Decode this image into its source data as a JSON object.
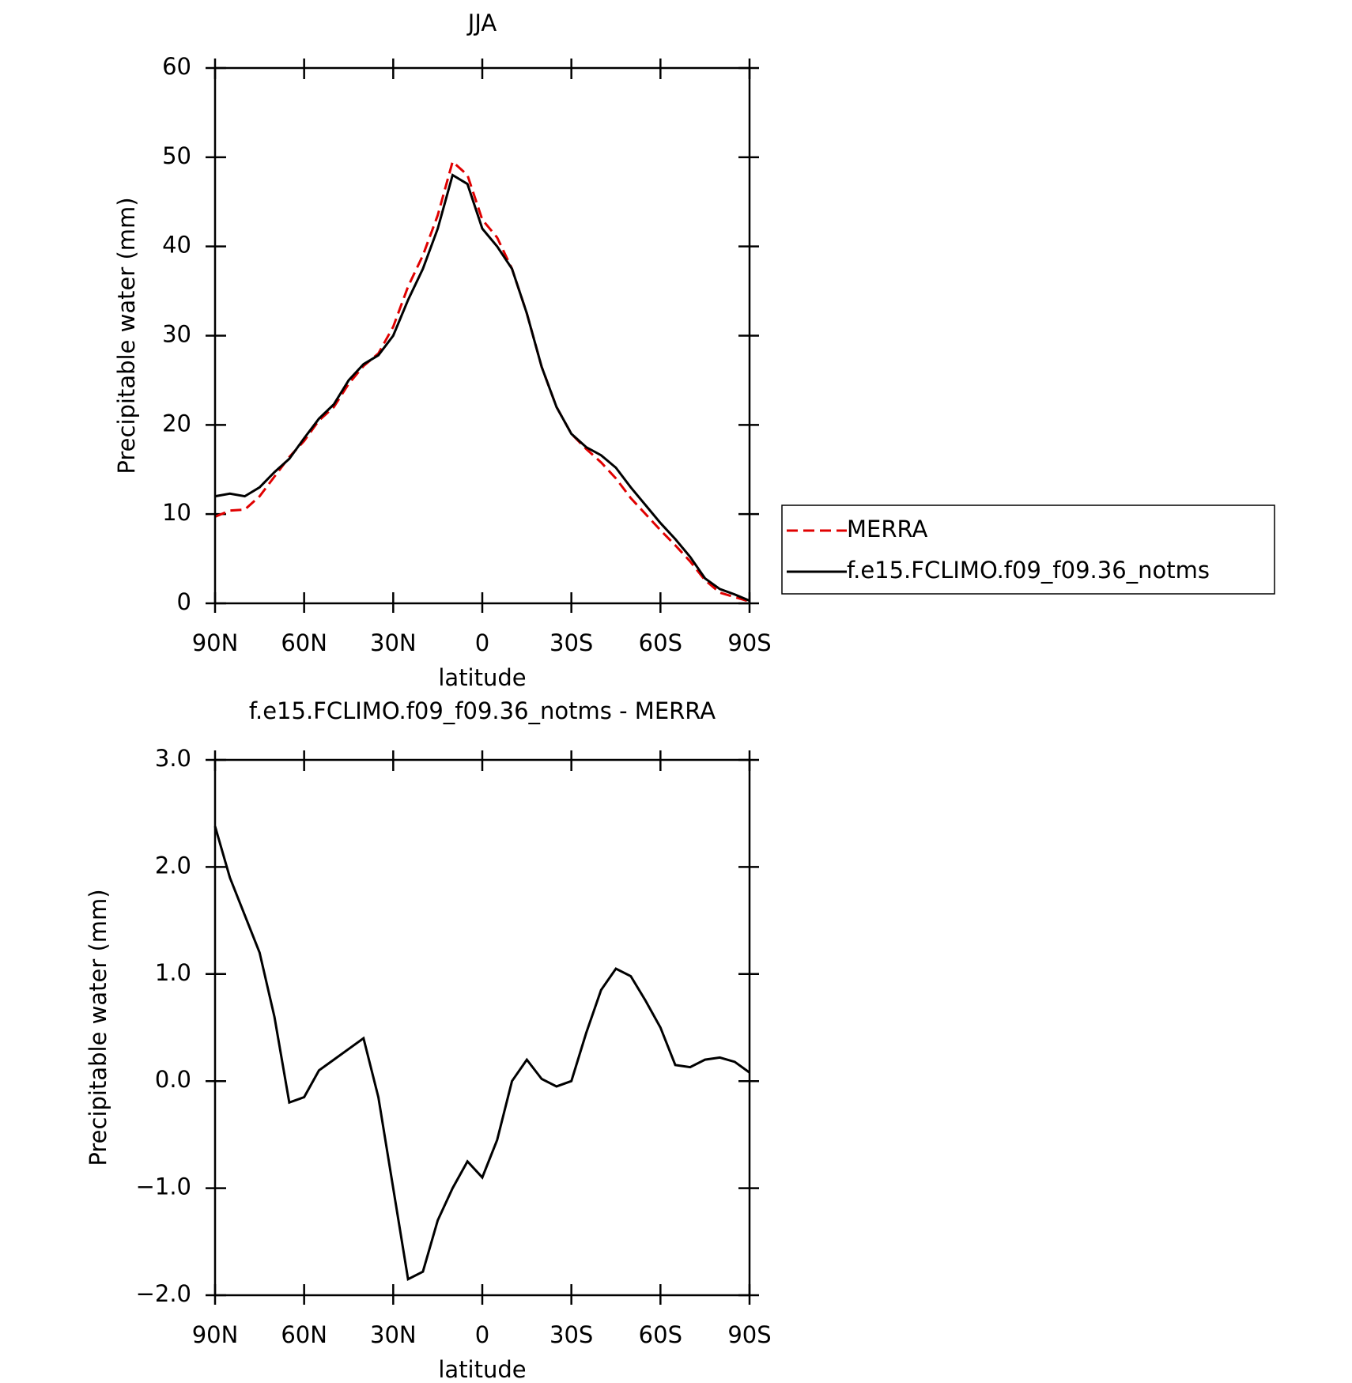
{
  "chart_data": [
    {
      "type": "line",
      "title": "JJA",
      "xlabel": "latitude",
      "ylabel": "Precipitable water (mm)",
      "x": [
        90,
        85,
        80,
        75,
        70,
        65,
        60,
        55,
        50,
        45,
        40,
        35,
        30,
        25,
        20,
        15,
        10,
        5,
        0,
        -5,
        -10,
        -15,
        -20,
        -25,
        -30,
        -35,
        -40,
        -45,
        -50,
        -55,
        -60,
        -65,
        -70,
        -75,
        -80,
        -85,
        -90
      ],
      "series": [
        {
          "name": "MERRA",
          "color": "#e00000",
          "line_style": "dashed",
          "values": [
            9.7,
            10.4,
            10.5,
            12,
            14.2,
            16.4,
            18.2,
            20.5,
            22,
            24.6,
            26.6,
            28,
            31,
            35.5,
            39,
            43.5,
            49.5,
            48,
            43,
            41,
            37.5,
            32.5,
            26.5,
            22,
            19,
            17.3,
            15.8,
            14,
            11.8,
            10,
            8.2,
            6.5,
            4.7,
            2.6,
            1.2,
            0.7,
            0.2
          ]
        },
        {
          "name": "f.e15.FCLIMO.f09_f09.36_notms",
          "color": "#000000",
          "line_style": "solid",
          "values": [
            12,
            12.3,
            12,
            13,
            14.7,
            16.2,
            18.5,
            20.7,
            22.3,
            25,
            26.8,
            27.8,
            30,
            34,
            37.5,
            42,
            48,
            47,
            42,
            40,
            37.5,
            32.5,
            26.5,
            22,
            19,
            17.5,
            16.6,
            15.2,
            13,
            11,
            9,
            7.2,
            5.2,
            2.8,
            1.6,
            1.0,
            0.3
          ]
        }
      ],
      "xlim": [
        90,
        -90
      ],
      "xticks": [
        {
          "value": 90,
          "label": "90N"
        },
        {
          "value": 60,
          "label": "60N"
        },
        {
          "value": 30,
          "label": "30N"
        },
        0,
        {
          "value": -30,
          "label": "30S"
        },
        {
          "value": -60,
          "label": "60S"
        },
        {
          "value": -90,
          "label": "90S"
        }
      ],
      "ylim": [
        0,
        60
      ],
      "yticks": [
        0,
        10,
        20,
        30,
        40,
        50,
        60
      ],
      "legend": "right"
    },
    {
      "type": "line",
      "title": "f.e15.FCLIMO.f09_f09.36_notms - MERRA",
      "xlabel": "latitude",
      "ylabel": "Precipitable water (mm)",
      "x": [
        90,
        85,
        80,
        75,
        70,
        65,
        60,
        55,
        50,
        45,
        40,
        35,
        30,
        25,
        20,
        15,
        10,
        5,
        0,
        -5,
        -10,
        -15,
        -20,
        -25,
        -30,
        -35,
        -40,
        -45,
        -50,
        -55,
        -60,
        -65,
        -70,
        -75,
        -80,
        -85,
        -90
      ],
      "series": [
        {
          "color": "#000000",
          "line_style": "solid",
          "values": [
            2.38,
            1.9,
            1.55,
            1.2,
            0.6,
            -0.2,
            -0.15,
            0.1,
            0.2,
            0.3,
            0.4,
            -0.15,
            -1.0,
            -1.85,
            -1.78,
            -1.3,
            -1.0,
            -0.75,
            -0.9,
            -0.55,
            0.0,
            0.2,
            0.02,
            -0.05,
            0.0,
            0.45,
            0.85,
            1.05,
            0.98,
            0.75,
            0.5,
            0.15,
            0.13,
            0.2,
            0.22,
            0.18,
            0.08
          ]
        }
      ],
      "xlim": [
        90,
        -90
      ],
      "xticks": [
        {
          "value": 90,
          "label": "90N"
        },
        {
          "value": 60,
          "label": "60N"
        },
        {
          "value": 30,
          "label": "30N"
        },
        0,
        {
          "value": -30,
          "label": "30S"
        },
        {
          "value": -60,
          "label": "60S"
        },
        {
          "value": -90,
          "label": "90S"
        }
      ],
      "ylim": [
        -2,
        3
      ],
      "yticks": [
        {
          "value": -2,
          "label": "−2.0"
        },
        {
          "value": -1,
          "label": "−1.0"
        },
        {
          "value": 0,
          "label": "0.0"
        },
        {
          "value": 1,
          "label": "1.0"
        },
        {
          "value": 2,
          "label": "2.0"
        },
        {
          "value": 3,
          "label": "3.0"
        }
      ]
    }
  ]
}
